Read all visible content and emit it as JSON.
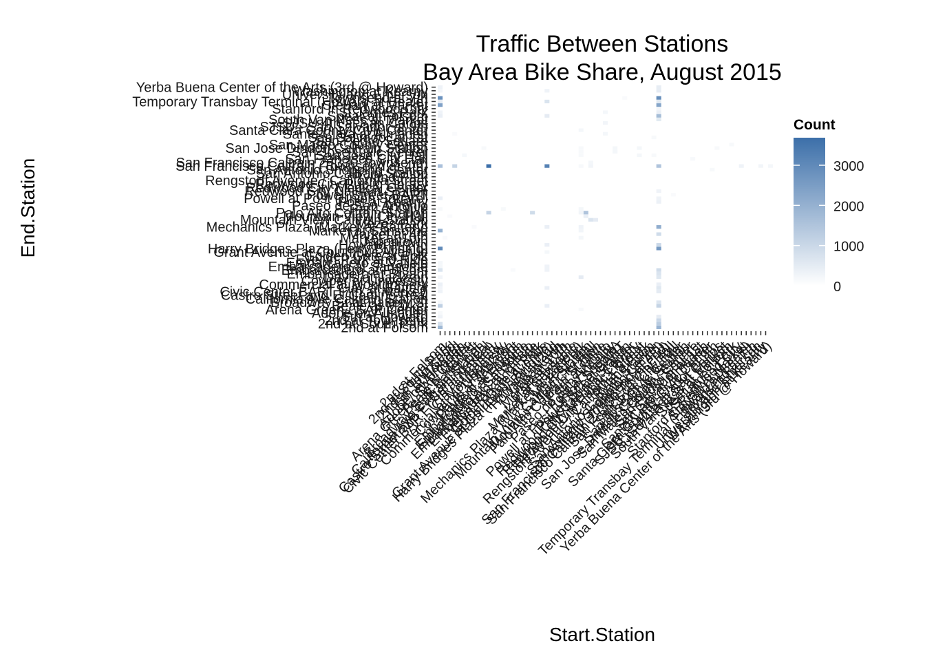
{
  "chart_data": {
    "type": "heatmap",
    "title": "Traffic Between Stations",
    "subtitle": "Bay Area Bike Share, August 2015",
    "xlabel": "Start.Station",
    "ylabel": "End.Station",
    "stations": [
      "2nd at Folsom",
      "2nd at South Park",
      "2nd at Townsend",
      "5th at Howard",
      "Adobe on Almaden",
      "Arena Green / SAP Center",
      "Beale at Market",
      "Broadway St at Battery St",
      "California Ave Caltrain Station",
      "Castro Street and El Camino Real",
      "Civic Center BART (7th at Market)",
      "Clay at Battery",
      "Commercial at Montgomery",
      "Cowper at University",
      "Davis at Jackson",
      "Embarcadero at Bryant",
      "Embarcadero at Folsom",
      "Embarcadero at Sansome",
      "Embarcadero at Vallejo",
      "Evelyn Park and Ride",
      "Golden Gate at Polk",
      "Grant Avenue at Columbus Avenue",
      "Harry Bridges Plaza (Ferry Building)",
      "Howard at 2nd",
      "Japantown",
      "Market at 10th",
      "Market at 4th",
      "Market at Sansome",
      "Mechanics Plaza (Market at Battery)",
      "Mezes Park",
      "Mountain View Caltrain Station",
      "Mountain View City Hall",
      "Palo Alto Caltrain Station",
      "Park at Olive",
      "Paseo de San Antonio",
      "Post at Kearny",
      "Powell at Post (Union Square)",
      "Powell Street BART",
      "Redwood City Caltrain Station",
      "Redwood City Medical Center",
      "Redwood City Public Library",
      "Rengstorff Avenue / California Street",
      "Ryland Park",
      "San Antonio Caltrain Station",
      "San Antonio Shopping Center",
      "San Francisco Caltrain (Townsend at 4th)",
      "San Francisco Caltrain 2 (330 Townsend)",
      "San Francisco City Hall",
      "San Jose City Hall",
      "San Jose Civic Center",
      "San Jose Diridon Caltrain Station",
      "San Mateo County Center",
      "San Pedro Square",
      "San Salvador at 1st",
      "Santa Clara at Almaden",
      "Santa Clara County Civic Center",
      "SJSU - San Salvador at 9th",
      "SJSU 4th at San Carlos",
      "South Van Ness at Market",
      "Spear at Folsom",
      "St James Park",
      "Stanford in Redwood City",
      "Steuart at Market",
      "Temporary Transbay Terminal (Howard at Beale)",
      "Townsend at 7th",
      "University and Emerson",
      "Washington at Kearny",
      "Yerba Buena Center of the Arts (3rd @ Howard)"
    ],
    "cells": [
      [
        10,
        45,
        3685
      ],
      [
        22,
        45,
        3200
      ],
      [
        0,
        22,
        3000
      ],
      [
        45,
        64,
        2900
      ],
      [
        0,
        64,
        2800
      ],
      [
        45,
        22,
        2600
      ],
      [
        0,
        62,
        2400
      ],
      [
        45,
        62,
        2300
      ],
      [
        45,
        28,
        2100
      ],
      [
        0,
        27,
        2000
      ],
      [
        45,
        0,
        1900
      ],
      [
        0,
        0,
        1800
      ],
      [
        45,
        59,
        1700
      ],
      [
        0,
        45,
        1600
      ],
      [
        45,
        45,
        1500
      ],
      [
        30,
        32,
        1500
      ],
      [
        45,
        1,
        1300
      ],
      [
        0,
        6,
        1200
      ],
      [
        45,
        6,
        1100
      ],
      [
        45,
        23,
        1000
      ],
      [
        3,
        45,
        1100
      ],
      [
        45,
        2,
        1000
      ],
      [
        45,
        26,
        900
      ],
      [
        45,
        16,
        900
      ],
      [
        0,
        1,
        800
      ],
      [
        0,
        16,
        700
      ],
      [
        45,
        15,
        700
      ],
      [
        45,
        7,
        650
      ],
      [
        45,
        11,
        600
      ],
      [
        45,
        14,
        600
      ],
      [
        45,
        3,
        500
      ],
      [
        45,
        58,
        550
      ],
      [
        45,
        66,
        500
      ],
      [
        45,
        10,
        500
      ],
      [
        45,
        67,
        450
      ],
      [
        45,
        63,
        600
      ],
      [
        45,
        60,
        400
      ],
      [
        45,
        12,
        400
      ],
      [
        45,
        35,
        350
      ],
      [
        45,
        36,
        300
      ],
      [
        45,
        38,
        300
      ],
      [
        45,
        61,
        250
      ],
      [
        10,
        32,
        1100
      ],
      [
        19,
        32,
        900
      ],
      [
        32,
        30,
        500
      ],
      [
        31,
        30,
        700
      ],
      [
        30,
        31,
        400
      ],
      [
        29,
        14,
        500
      ],
      [
        29,
        45,
        150
      ],
      [
        29,
        25,
        200
      ],
      [
        0,
        60,
        300
      ],
      [
        0,
        63,
        500
      ],
      [
        0,
        67,
        300
      ],
      [
        0,
        59,
        400
      ],
      [
        0,
        36,
        400
      ],
      [
        0,
        12,
        350
      ],
      [
        0,
        3,
        300
      ],
      [
        0,
        10,
        300
      ],
      [
        0,
        66,
        250
      ],
      [
        0,
        7,
        200
      ],
      [
        0,
        17,
        200
      ],
      [
        0,
        18,
        200
      ],
      [
        0,
        11,
        250
      ],
      [
        0,
        14,
        250
      ],
      [
        0,
        4,
        150
      ],
      [
        22,
        63,
        700
      ],
      [
        22,
        59,
        500
      ],
      [
        22,
        23,
        400
      ],
      [
        22,
        66,
        300
      ],
      [
        22,
        28,
        400
      ],
      [
        22,
        16,
        300
      ],
      [
        22,
        6,
        400
      ],
      [
        22,
        11,
        400
      ],
      [
        22,
        21,
        200
      ],
      [
        22,
        17,
        300
      ],
      [
        29,
        28,
        300
      ],
      [
        29,
        32,
        250
      ],
      [
        29,
        27,
        250
      ],
      [
        29,
        33,
        200
      ],
      [
        29,
        55,
        200
      ],
      [
        29,
        5,
        150
      ],
      [
        29,
        48,
        150
      ],
      [
        29,
        49,
        150
      ],
      [
        29,
        50,
        150
      ],
      [
        31,
        45,
        250
      ],
      [
        31,
        46,
        200
      ],
      [
        34,
        54,
        200
      ],
      [
        34,
        60,
        200
      ],
      [
        34,
        57,
        250
      ],
      [
        36,
        49,
        200
      ],
      [
        36,
        50,
        200
      ],
      [
        36,
        49,
        200
      ],
      [
        41,
        48,
        200
      ],
      [
        41,
        50,
        200
      ],
      [
        44,
        48,
        150
      ],
      [
        44,
        53,
        150
      ],
      [
        52,
        47,
        150
      ],
      [
        57,
        50,
        150
      ],
      [
        60,
        51,
        150
      ],
      [
        62,
        45,
        300
      ],
      [
        66,
        45,
        250
      ],
      [
        68,
        45,
        200
      ],
      [
        5,
        48,
        180
      ],
      [
        9,
        50,
        150
      ],
      [
        15,
        16,
        120
      ],
      [
        7,
        28,
        120
      ],
      [
        13,
        33,
        150
      ],
      [
        56,
        44,
        150
      ],
      [
        48,
        37,
        120
      ],
      [
        38,
        64,
        120
      ],
      [
        1,
        25,
        120
      ],
      [
        2,
        31,
        120
      ],
      [
        0,
        33,
        150
      ],
      [
        3,
        54,
        120
      ]
    ],
    "legend": {
      "title": "Count",
      "ticks": [
        0,
        1000,
        2000,
        3000
      ],
      "range": [
        0,
        3685
      ],
      "low_color": "#ffffff",
      "high_color": "#3c6fa9",
      "position": "right"
    },
    "grid": false
  }
}
